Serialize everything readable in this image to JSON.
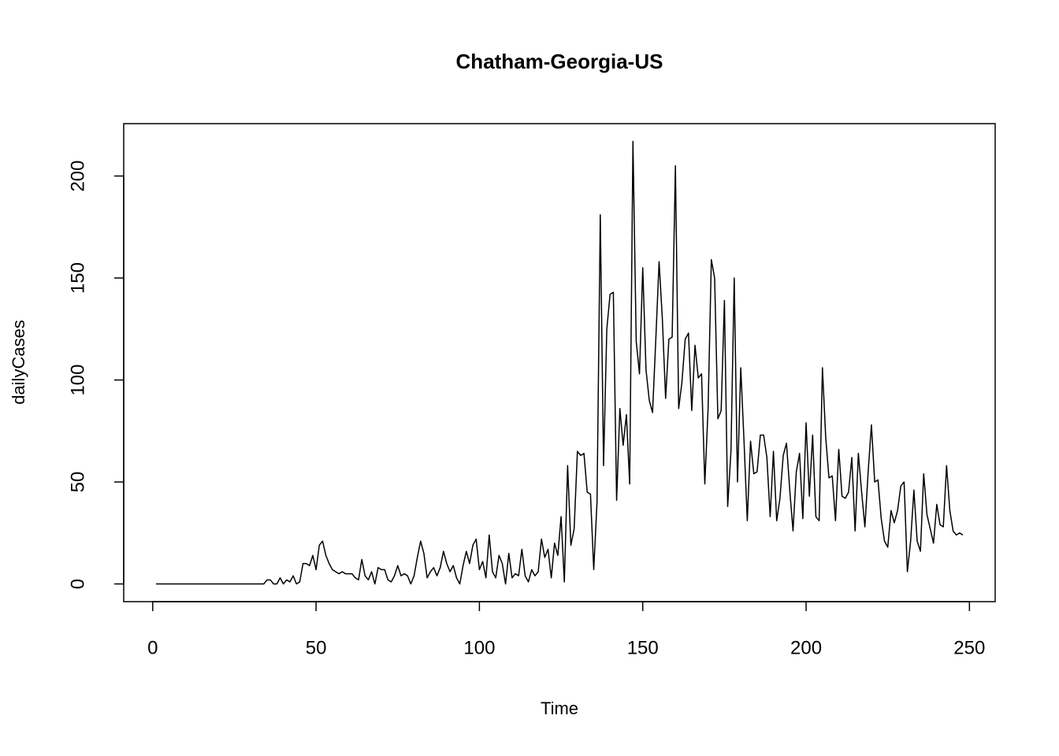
{
  "chart_data": {
    "type": "line",
    "title": "Chatham-Georgia-US",
    "x_label": "Time",
    "y_label": "dailyCases",
    "x": [
      1,
      2,
      3,
      4,
      5,
      6,
      7,
      8,
      9,
      10,
      11,
      12,
      13,
      14,
      15,
      16,
      17,
      18,
      19,
      20,
      21,
      22,
      23,
      24,
      25,
      26,
      27,
      28,
      29,
      30,
      31,
      32,
      33,
      34,
      35,
      36,
      37,
      38,
      39,
      40,
      41,
      42,
      43,
      44,
      45,
      46,
      47,
      48,
      49,
      50,
      51,
      52,
      53,
      54,
      55,
      56,
      57,
      58,
      59,
      60,
      61,
      62,
      63,
      64,
      65,
      66,
      67,
      68,
      69,
      70,
      71,
      72,
      73,
      74,
      75,
      76,
      77,
      78,
      79,
      80,
      81,
      82,
      83,
      84,
      85,
      86,
      87,
      88,
      89,
      90,
      91,
      92,
      93,
      94,
      95,
      96,
      97,
      98,
      99,
      100,
      101,
      102,
      103,
      104,
      105,
      106,
      107,
      108,
      109,
      110,
      111,
      112,
      113,
      114,
      115,
      116,
      117,
      118,
      119,
      120,
      121,
      122,
      123,
      124,
      125,
      126,
      127,
      128,
      129,
      130,
      131,
      132,
      133,
      134,
      135,
      136,
      137,
      138,
      139,
      140,
      141,
      142,
      143,
      144,
      145,
      146,
      147,
      148,
      149,
      150,
      151,
      152,
      153,
      154,
      155,
      156,
      157,
      158,
      159,
      160,
      161,
      162,
      163,
      164,
      165,
      166,
      167,
      168,
      169,
      170,
      171,
      172,
      173,
      174,
      175,
      176,
      177,
      178,
      179,
      180,
      181,
      182,
      183,
      184,
      185,
      186,
      187,
      188,
      189,
      190,
      191,
      192,
      193,
      194,
      195,
      196,
      197,
      198,
      199,
      200,
      201,
      202,
      203,
      204,
      205,
      206,
      207,
      208,
      209,
      210,
      211,
      212,
      213,
      214,
      215,
      216,
      217,
      218,
      219,
      220,
      221,
      222,
      223,
      224,
      225,
      226,
      227,
      228,
      229,
      230,
      231,
      232,
      233,
      234,
      235,
      236,
      237,
      238,
      239,
      240,
      241,
      242,
      243,
      244,
      245,
      246,
      247,
      248
    ],
    "values": [
      0,
      0,
      0,
      0,
      0,
      0,
      0,
      0,
      0,
      0,
      0,
      0,
      0,
      0,
      0,
      0,
      0,
      0,
      0,
      0,
      0,
      0,
      0,
      0,
      0,
      0,
      0,
      0,
      0,
      0,
      0,
      0,
      0,
      0,
      2,
      2,
      0,
      0,
      3,
      0,
      2,
      1,
      4,
      0,
      1,
      10,
      10,
      9,
      14,
      7,
      19,
      21,
      14,
      10,
      7,
      6,
      5,
      6,
      5,
      5,
      5,
      3,
      2,
      12,
      4,
      2,
      6,
      0,
      8,
      7,
      7,
      2,
      1,
      4,
      9,
      4,
      5,
      4,
      0,
      4,
      13,
      21,
      15,
      3,
      6,
      8,
      4,
      8,
      16,
      10,
      6,
      9,
      3,
      0,
      9,
      16,
      10,
      19,
      22,
      7,
      11,
      3,
      24,
      6,
      3,
      14,
      10,
      0,
      15,
      3,
      5,
      4,
      17,
      4,
      1,
      7,
      4,
      6,
      22,
      13,
      17,
      3,
      20,
      14,
      33,
      1,
      58,
      19,
      27,
      65,
      63,
      64,
      45,
      44,
      7,
      40,
      181,
      58,
      125,
      142,
      143,
      41,
      86,
      68,
      83,
      49,
      217,
      119,
      103,
      155,
      105,
      90,
      84,
      120,
      158,
      130,
      91,
      120,
      121,
      205,
      86,
      99,
      120,
      123,
      85,
      117,
      101,
      103,
      49,
      86,
      159,
      150,
      81,
      85,
      139,
      38,
      65,
      150,
      50,
      106,
      70,
      31,
      70,
      54,
      55,
      73,
      73,
      62,
      33,
      65,
      31,
      42,
      63,
      69,
      46,
      26,
      55,
      64,
      32,
      79,
      43,
      73,
      33,
      31,
      106,
      72,
      52,
      53,
      31,
      66,
      43,
      42,
      45,
      62,
      26,
      64,
      45,
      28,
      55,
      78,
      50,
      51,
      32,
      21,
      18,
      36,
      30,
      36,
      48,
      50,
      6,
      21,
      46,
      21,
      16,
      54,
      34,
      27,
      20,
      39,
      29,
      28,
      58,
      36,
      26,
      24,
      25,
      24
    ],
    "color": "#000000",
    "xlim": [
      -8.88,
      257.88
    ],
    "ylim": [
      -8.68,
      225.68
    ],
    "xticks": [
      0,
      50,
      100,
      150,
      200,
      250
    ],
    "yticks": [
      0,
      50,
      100,
      150,
      200
    ]
  }
}
